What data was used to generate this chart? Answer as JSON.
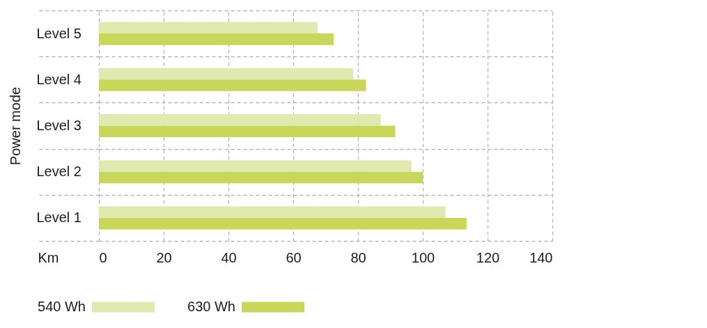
{
  "chart_data": {
    "type": "bar",
    "orientation": "horizontal",
    "xlabel": "Km",
    "ylabel": "Power mode",
    "categories": [
      "Level 5",
      "Level 4",
      "Level 3",
      "Level 2",
      "Level 1"
    ],
    "series": [
      {
        "name": "540 Wh",
        "color": "#e0e9b0",
        "values": [
          67.5,
          78.5,
          87,
          96.5,
          107
        ]
      },
      {
        "name": "630 Wh",
        "color": "#c8d65a",
        "values": [
          72.5,
          82.5,
          91.5,
          100,
          113.5
        ]
      }
    ],
    "xlim": [
      0,
      140
    ],
    "xticks": [
      0,
      20,
      40,
      60,
      80,
      100,
      120,
      140
    ],
    "grid": true,
    "legend": "bottom"
  }
}
